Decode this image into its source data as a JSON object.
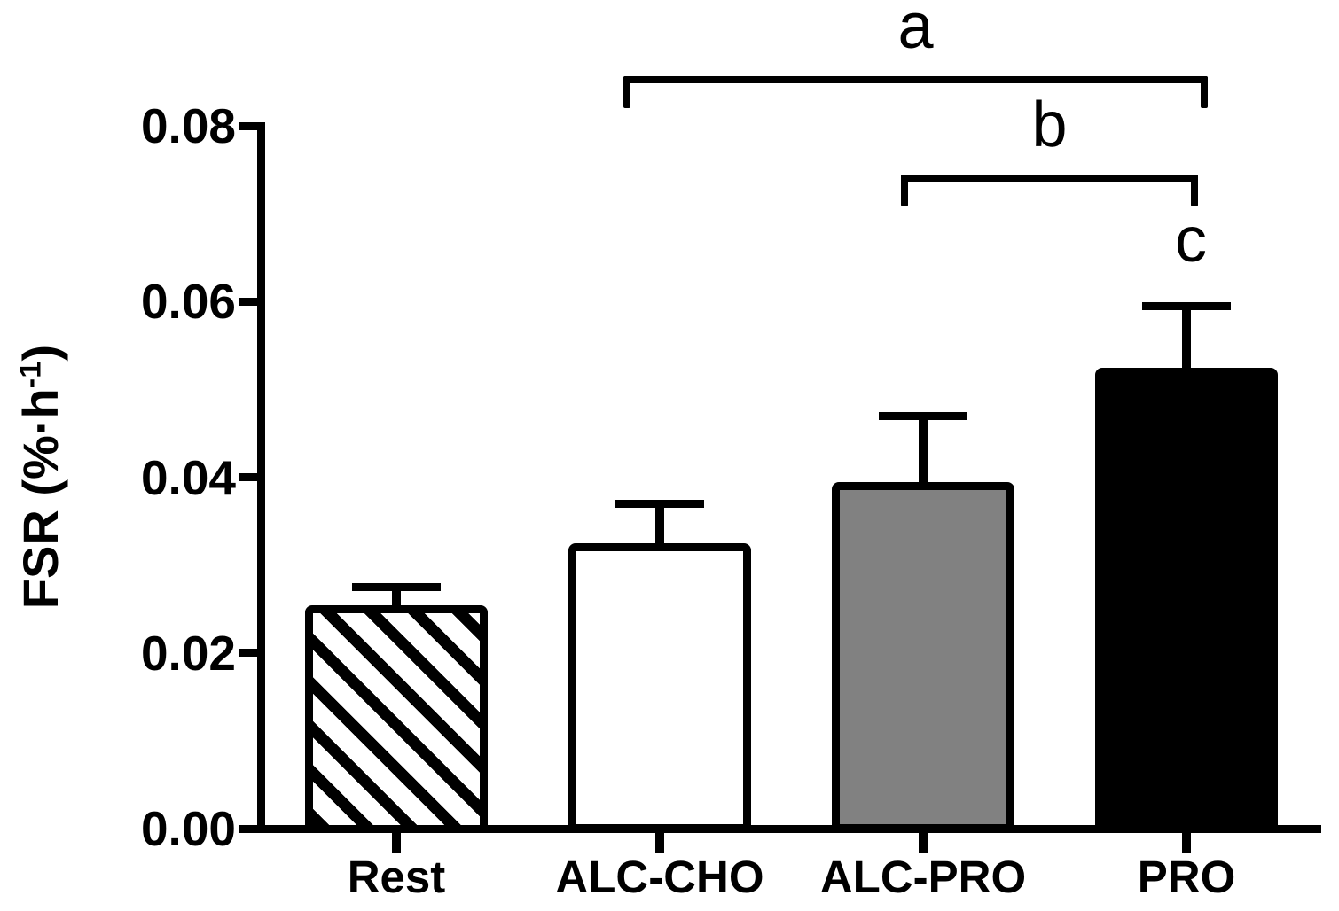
{
  "figure": {
    "background_color": "#ffffff",
    "axis_color": "#000000"
  },
  "chart_data": {
    "type": "bar",
    "title": "",
    "xlabel": "",
    "ylabel": "FSR (%·h⁻¹)",
    "ylabel_parts": {
      "prefix": "FSR (%·h",
      "sup": "-1",
      "suffix": ")"
    },
    "categories": [
      "Rest",
      "ALC-CHO",
      "ALC-PRO",
      "PRO"
    ],
    "values": [
      0.025,
      0.032,
      0.039,
      0.052
    ],
    "errors_upper": [
      0.0025,
      0.005,
      0.008,
      0.0075
    ],
    "ylim": [
      0,
      0.08
    ],
    "y_ticks": [
      0,
      0.02,
      0.04,
      0.06,
      0.08
    ],
    "y_tick_labels": [
      "0.00",
      "0.02",
      "0.04",
      "0.06",
      "0.08"
    ],
    "grid": false,
    "legend": false,
    "error_bar_style": "upper only, capped",
    "bar_fills": [
      "hatched-diagonal",
      "white",
      "gray",
      "black"
    ],
    "bar_colors": [
      "#ffffff",
      "#ffffff",
      "#818181",
      "#000000"
    ],
    "significance_brackets": [
      {
        "label": "a",
        "from": "ALC-CHO",
        "to": "PRO"
      },
      {
        "label": "b",
        "from": "ALC-PRO",
        "to": "PRO"
      }
    ],
    "bar_point_labels": [
      {
        "label": "c",
        "bar": "PRO"
      }
    ]
  }
}
